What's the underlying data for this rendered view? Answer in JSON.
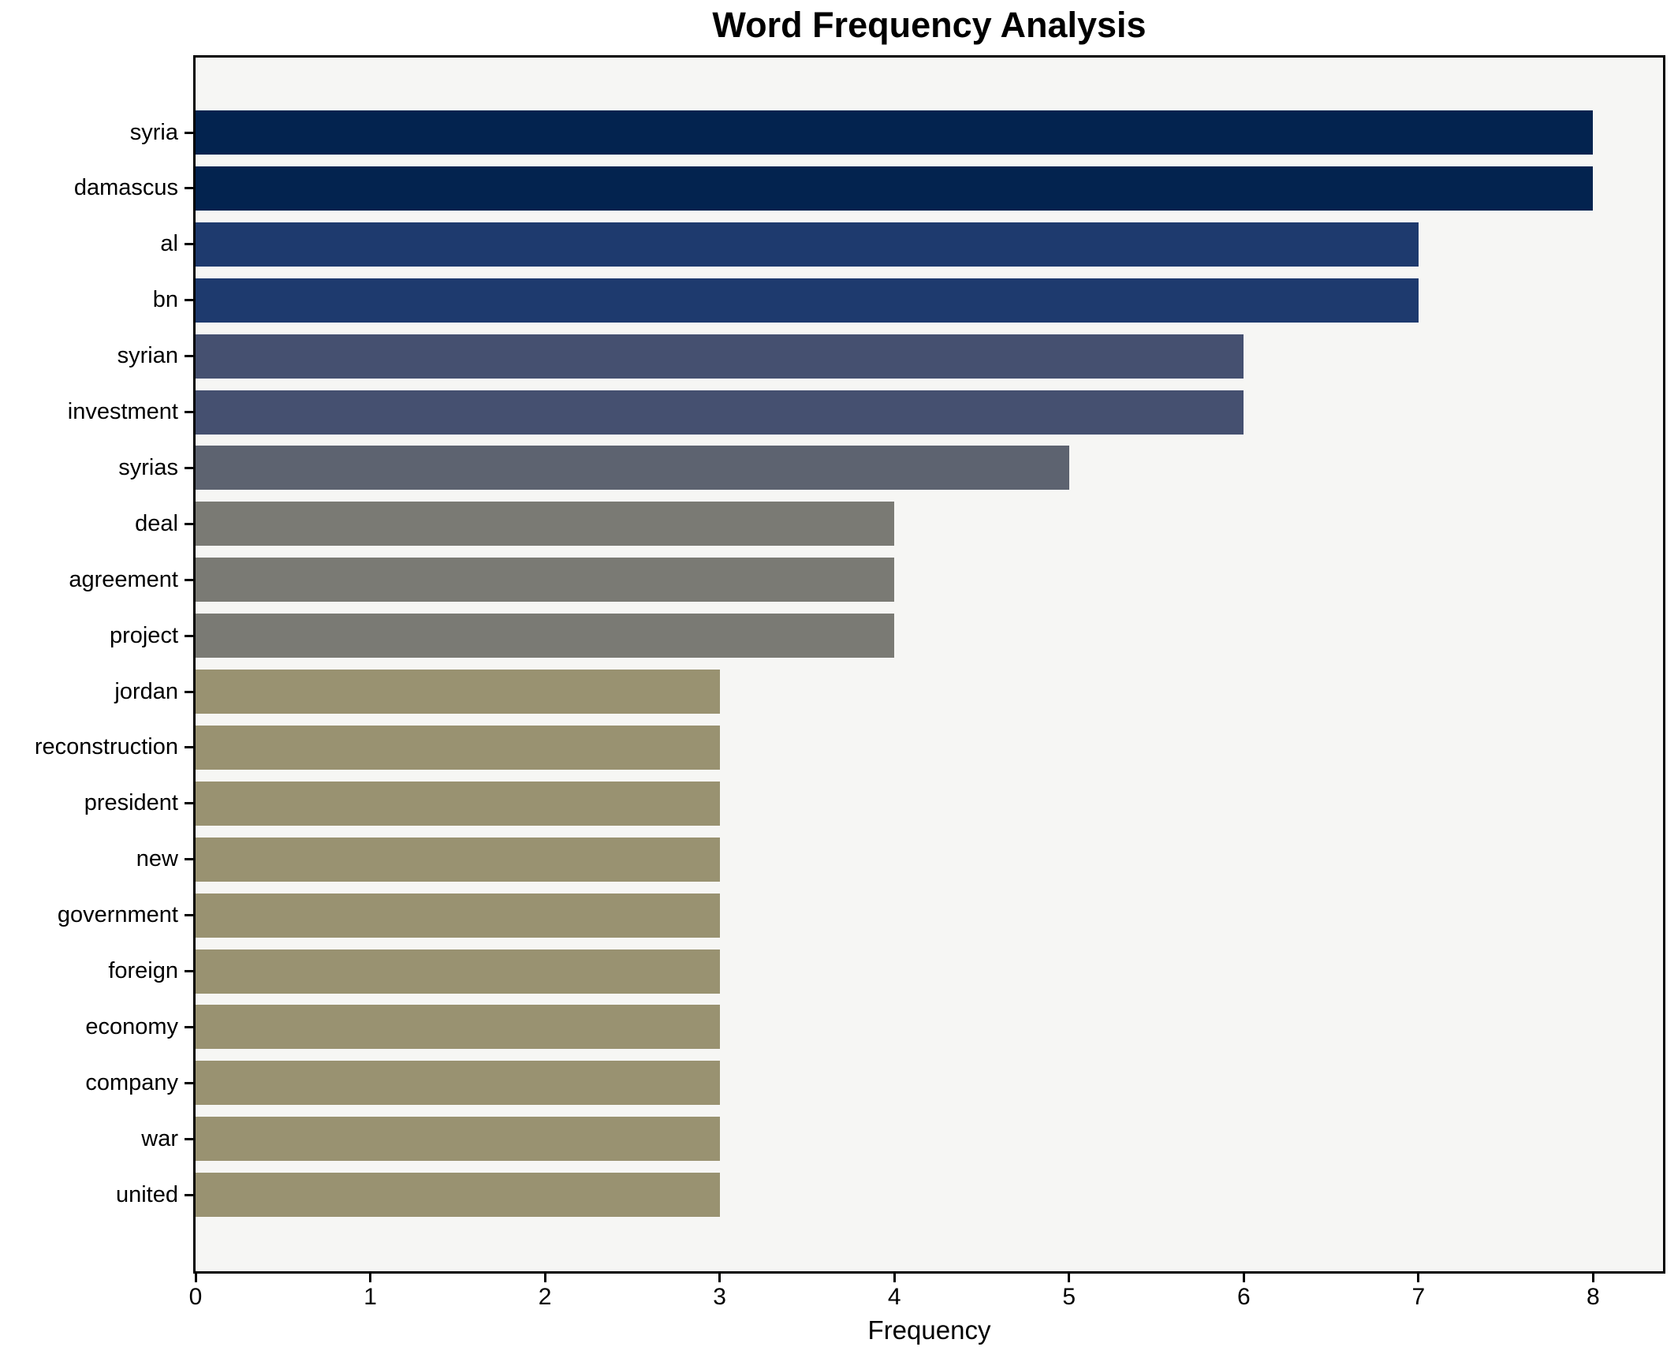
{
  "title": "Word Frequency Analysis",
  "chart_data": {
    "type": "bar",
    "orientation": "horizontal",
    "title": "Word Frequency Analysis",
    "xlabel": "Frequency",
    "ylabel": "",
    "categories": [
      "syria",
      "damascus",
      "al",
      "bn",
      "syrian",
      "investment",
      "syrias",
      "deal",
      "agreement",
      "project",
      "jordan",
      "reconstruction",
      "president",
      "new",
      "government",
      "foreign",
      "economy",
      "company",
      "war",
      "united"
    ],
    "values": [
      8,
      8,
      7,
      7,
      6,
      6,
      5,
      4,
      4,
      4,
      3,
      3,
      3,
      3,
      3,
      3,
      3,
      3,
      3,
      3
    ],
    "bar_colors": [
      "#03234f",
      "#03234f",
      "#1e3a6e",
      "#1e3a6e",
      "#455070",
      "#455070",
      "#5d6370",
      "#7a7a74",
      "#7a7a74",
      "#7a7a74",
      "#999271",
      "#999271",
      "#999271",
      "#999271",
      "#999271",
      "#999271",
      "#999271",
      "#999271",
      "#999271",
      "#999271"
    ],
    "xlim": [
      0,
      8.4
    ],
    "x_ticks": [
      0,
      1,
      2,
      3,
      4,
      5,
      6,
      7,
      8
    ],
    "grid": false,
    "legend": false,
    "plot_background": "#f6f6f4",
    "figure_background": "#ffffff",
    "spine_color": "#000000"
  }
}
